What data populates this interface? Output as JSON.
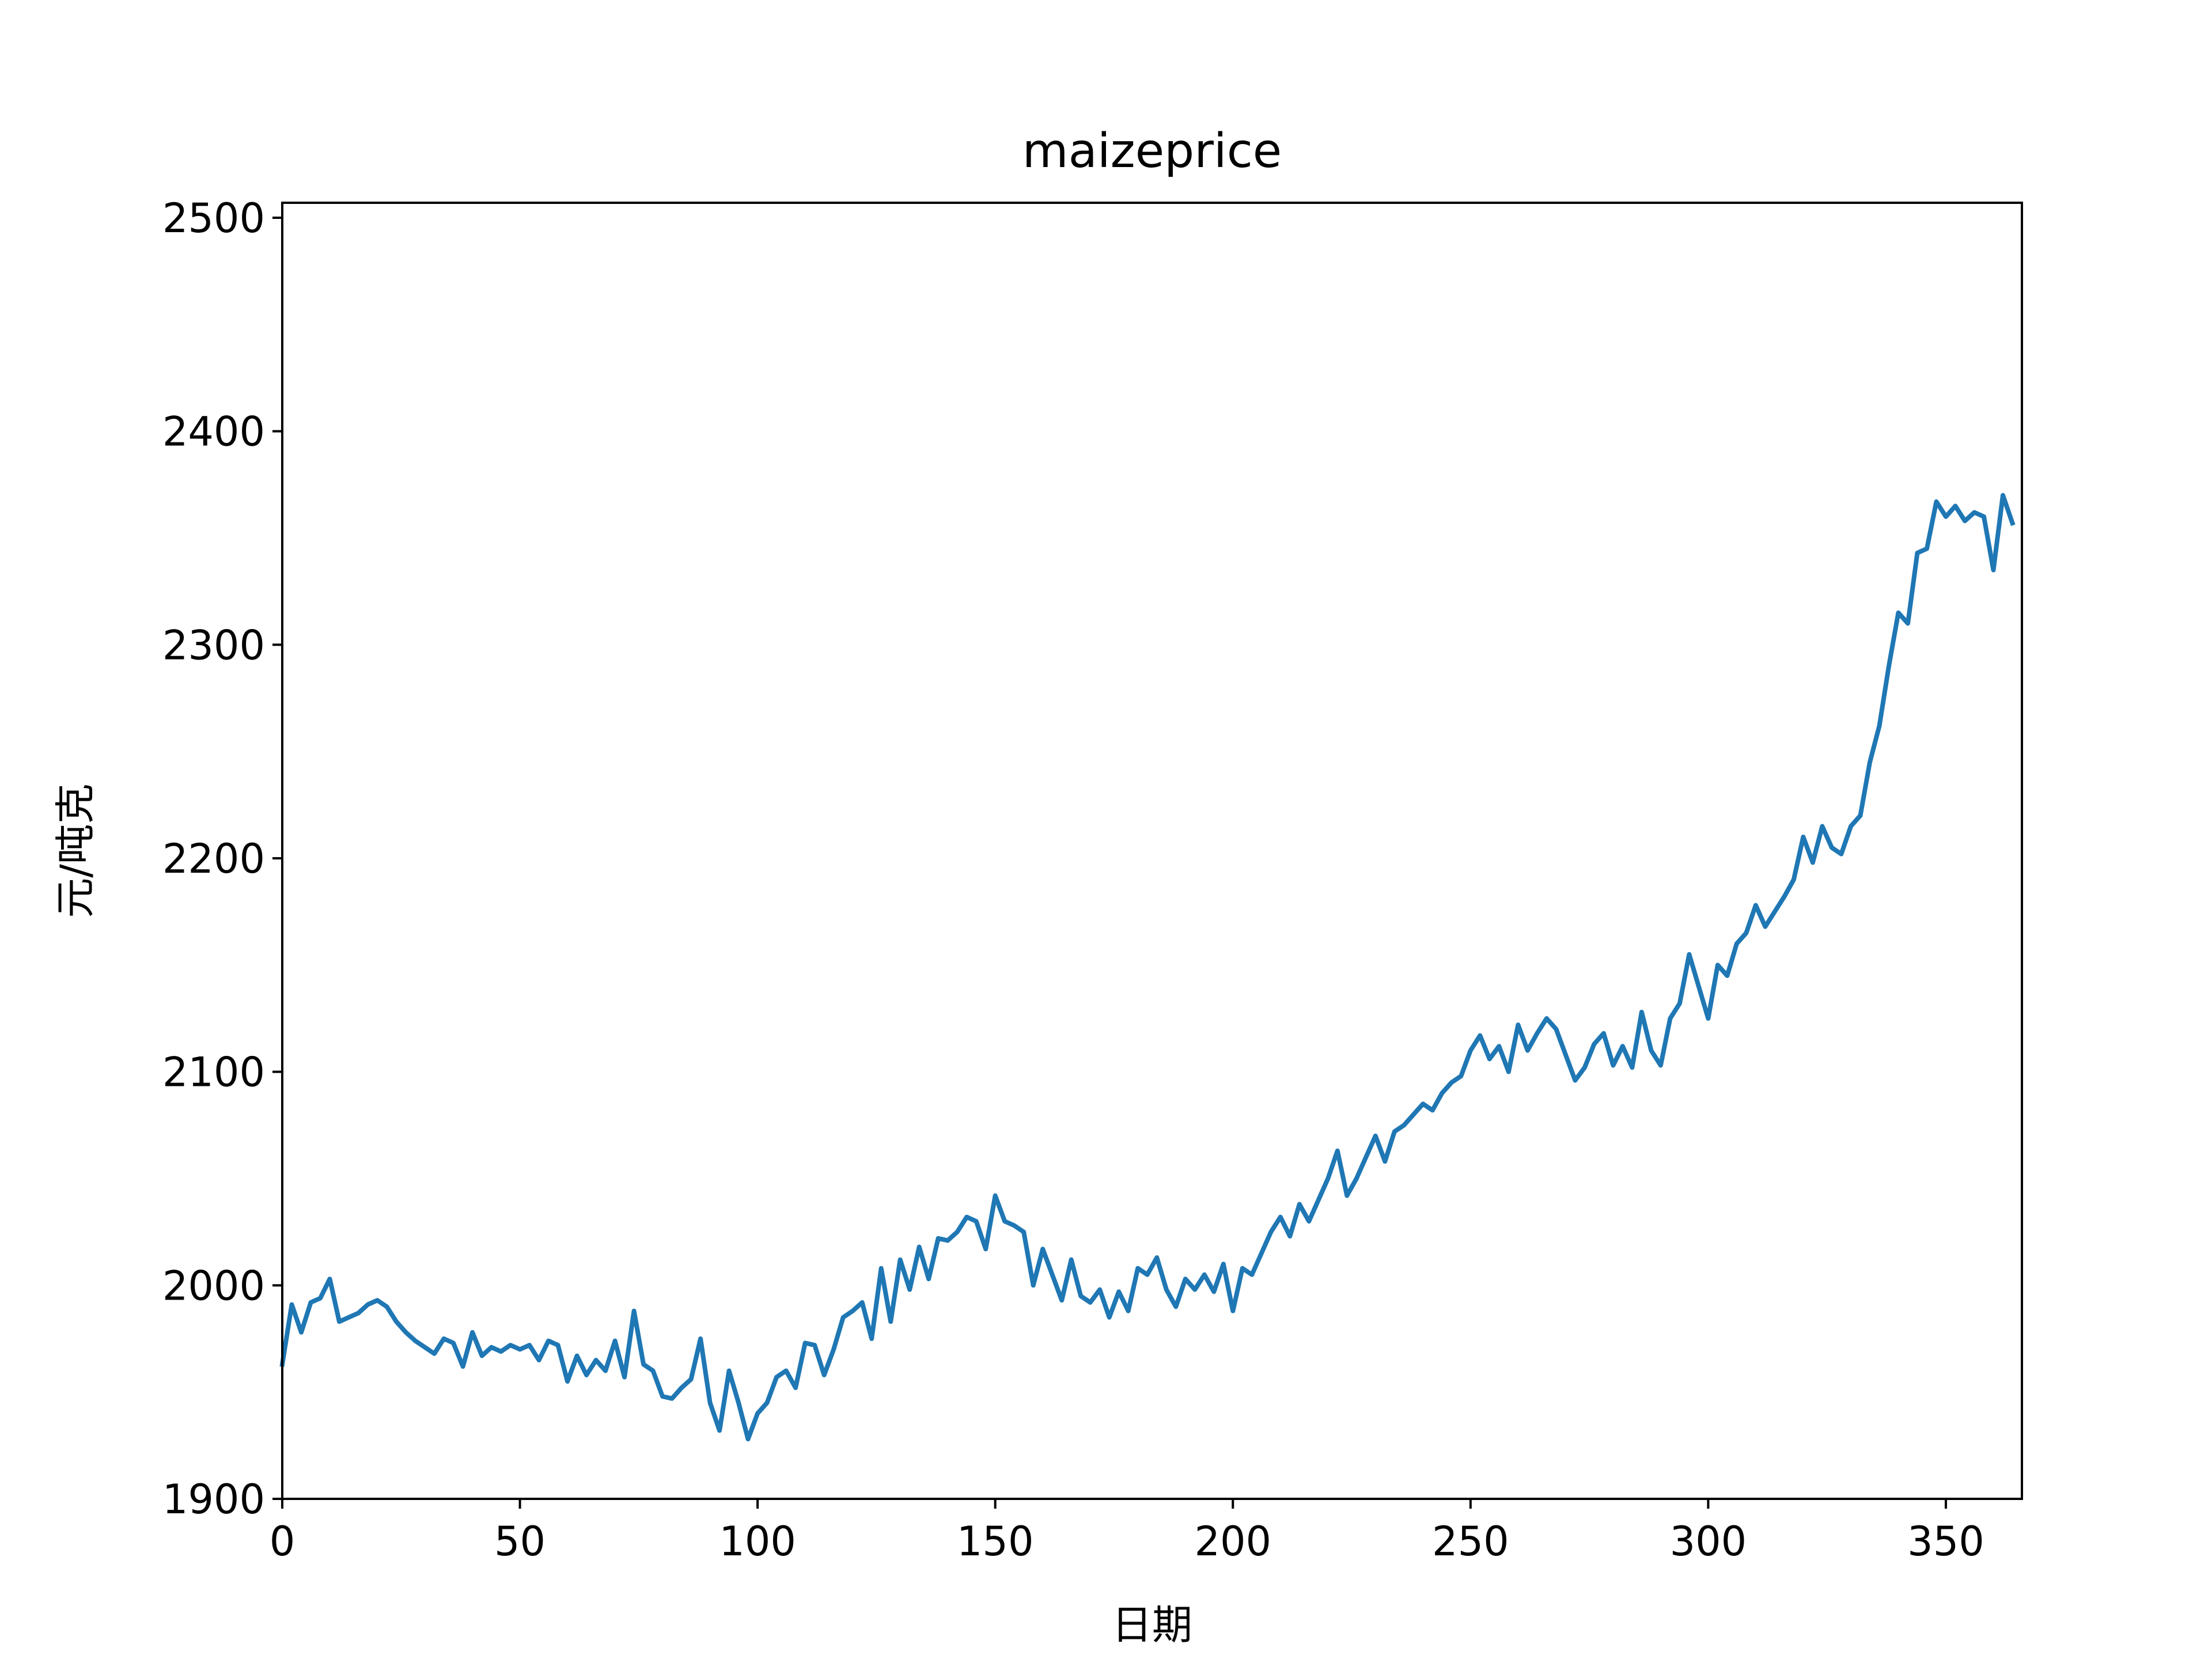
{
  "chart_data": {
    "type": "line",
    "title": "maizeprice",
    "xlabel": "日期",
    "ylabel": "元/吨克",
    "xlim": [
      0,
      366
    ],
    "ylim": [
      1900,
      2507
    ],
    "x_ticks": [
      0,
      50,
      100,
      150,
      200,
      250,
      300,
      350
    ],
    "y_ticks": [
      1900,
      2000,
      2100,
      2200,
      2300,
      2400,
      2500
    ],
    "grid": false,
    "series": [
      {
        "color": "#1f77b4",
        "points": [
          [
            0,
            1963
          ],
          [
            2,
            1991
          ],
          [
            4,
            1978
          ],
          [
            6,
            1992
          ],
          [
            8,
            1994
          ],
          [
            10,
            2003
          ],
          [
            12,
            1983
          ],
          [
            14,
            1985
          ],
          [
            16,
            1987
          ],
          [
            18,
            1991
          ],
          [
            20,
            1993
          ],
          [
            22,
            1990
          ],
          [
            24,
            1983
          ],
          [
            26,
            1978
          ],
          [
            28,
            1974
          ],
          [
            30,
            1971
          ],
          [
            32,
            1968
          ],
          [
            34,
            1975
          ],
          [
            36,
            1973
          ],
          [
            38,
            1962
          ],
          [
            40,
            1978
          ],
          [
            42,
            1967
          ],
          [
            44,
            1971
          ],
          [
            46,
            1969
          ],
          [
            48,
            1972
          ],
          [
            50,
            1970
          ],
          [
            52,
            1972
          ],
          [
            54,
            1965
          ],
          [
            56,
            1974
          ],
          [
            58,
            1972
          ],
          [
            60,
            1955
          ],
          [
            62,
            1967
          ],
          [
            64,
            1958
          ],
          [
            66,
            1965
          ],
          [
            68,
            1960
          ],
          [
            70,
            1974
          ],
          [
            72,
            1957
          ],
          [
            74,
            1988
          ],
          [
            76,
            1963
          ],
          [
            78,
            1960
          ],
          [
            80,
            1948
          ],
          [
            82,
            1947
          ],
          [
            84,
            1952
          ],
          [
            86,
            1956
          ],
          [
            88,
            1975
          ],
          [
            90,
            1945
          ],
          [
            92,
            1932
          ],
          [
            94,
            1960
          ],
          [
            96,
            1945
          ],
          [
            98,
            1928
          ],
          [
            100,
            1940
          ],
          [
            102,
            1945
          ],
          [
            104,
            1957
          ],
          [
            106,
            1960
          ],
          [
            108,
            1952
          ],
          [
            110,
            1973
          ],
          [
            112,
            1972
          ],
          [
            114,
            1958
          ],
          [
            116,
            1970
          ],
          [
            118,
            1985
          ],
          [
            120,
            1988
          ],
          [
            122,
            1992
          ],
          [
            124,
            1975
          ],
          [
            126,
            2008
          ],
          [
            128,
            1983
          ],
          [
            130,
            2012
          ],
          [
            132,
            1998
          ],
          [
            134,
            2018
          ],
          [
            136,
            2003
          ],
          [
            138,
            2022
          ],
          [
            140,
            2021
          ],
          [
            142,
            2025
          ],
          [
            144,
            2032
          ],
          [
            146,
            2030
          ],
          [
            148,
            2017
          ],
          [
            150,
            2042
          ],
          [
            152,
            2030
          ],
          [
            154,
            2028
          ],
          [
            156,
            2025
          ],
          [
            158,
            2000
          ],
          [
            160,
            2017
          ],
          [
            162,
            2005
          ],
          [
            164,
            1993
          ],
          [
            166,
            2012
          ],
          [
            168,
            1995
          ],
          [
            170,
            1992
          ],
          [
            172,
            1998
          ],
          [
            174,
            1985
          ],
          [
            176,
            1997
          ],
          [
            178,
            1988
          ],
          [
            180,
            2008
          ],
          [
            182,
            2005
          ],
          [
            184,
            2013
          ],
          [
            186,
            1998
          ],
          [
            188,
            1990
          ],
          [
            190,
            2003
          ],
          [
            192,
            1998
          ],
          [
            194,
            2005
          ],
          [
            196,
            1997
          ],
          [
            198,
            2010
          ],
          [
            200,
            1988
          ],
          [
            202,
            2008
          ],
          [
            204,
            2005
          ],
          [
            206,
            2015
          ],
          [
            208,
            2025
          ],
          [
            210,
            2032
          ],
          [
            212,
            2023
          ],
          [
            214,
            2038
          ],
          [
            216,
            2030
          ],
          [
            218,
            2040
          ],
          [
            220,
            2050
          ],
          [
            222,
            2063
          ],
          [
            224,
            2042
          ],
          [
            226,
            2050
          ],
          [
            228,
            2060
          ],
          [
            230,
            2070
          ],
          [
            232,
            2058
          ],
          [
            234,
            2072
          ],
          [
            236,
            2075
          ],
          [
            238,
            2080
          ],
          [
            240,
            2085
          ],
          [
            242,
            2082
          ],
          [
            244,
            2090
          ],
          [
            246,
            2095
          ],
          [
            248,
            2098
          ],
          [
            250,
            2110
          ],
          [
            252,
            2117
          ],
          [
            254,
            2106
          ],
          [
            256,
            2112
          ],
          [
            258,
            2100
          ],
          [
            260,
            2122
          ],
          [
            262,
            2110
          ],
          [
            264,
            2118
          ],
          [
            266,
            2125
          ],
          [
            268,
            2120
          ],
          [
            270,
            2108
          ],
          [
            272,
            2096
          ],
          [
            274,
            2102
          ],
          [
            276,
            2113
          ],
          [
            278,
            2118
          ],
          [
            280,
            2103
          ],
          [
            282,
            2112
          ],
          [
            284,
            2102
          ],
          [
            286,
            2128
          ],
          [
            288,
            2110
          ],
          [
            290,
            2103
          ],
          [
            292,
            2125
          ],
          [
            294,
            2132
          ],
          [
            296,
            2155
          ],
          [
            298,
            2140
          ],
          [
            300,
            2125
          ],
          [
            302,
            2150
          ],
          [
            304,
            2145
          ],
          [
            306,
            2160
          ],
          [
            308,
            2165
          ],
          [
            310,
            2178
          ],
          [
            312,
            2168
          ],
          [
            314,
            2175
          ],
          [
            316,
            2182
          ],
          [
            318,
            2190
          ],
          [
            320,
            2210
          ],
          [
            322,
            2198
          ],
          [
            324,
            2215
          ],
          [
            326,
            2205
          ],
          [
            328,
            2202
          ],
          [
            330,
            2215
          ],
          [
            332,
            2220
          ],
          [
            334,
            2245
          ],
          [
            336,
            2262
          ],
          [
            338,
            2290
          ],
          [
            340,
            2315
          ],
          [
            342,
            2310
          ],
          [
            344,
            2343
          ],
          [
            346,
            2345
          ],
          [
            348,
            2367
          ],
          [
            350,
            2360
          ],
          [
            352,
            2365
          ],
          [
            354,
            2358
          ],
          [
            356,
            2362
          ],
          [
            358,
            2360
          ],
          [
            360,
            2335
          ],
          [
            362,
            2370
          ],
          [
            364,
            2357
          ]
        ]
      }
    ]
  }
}
